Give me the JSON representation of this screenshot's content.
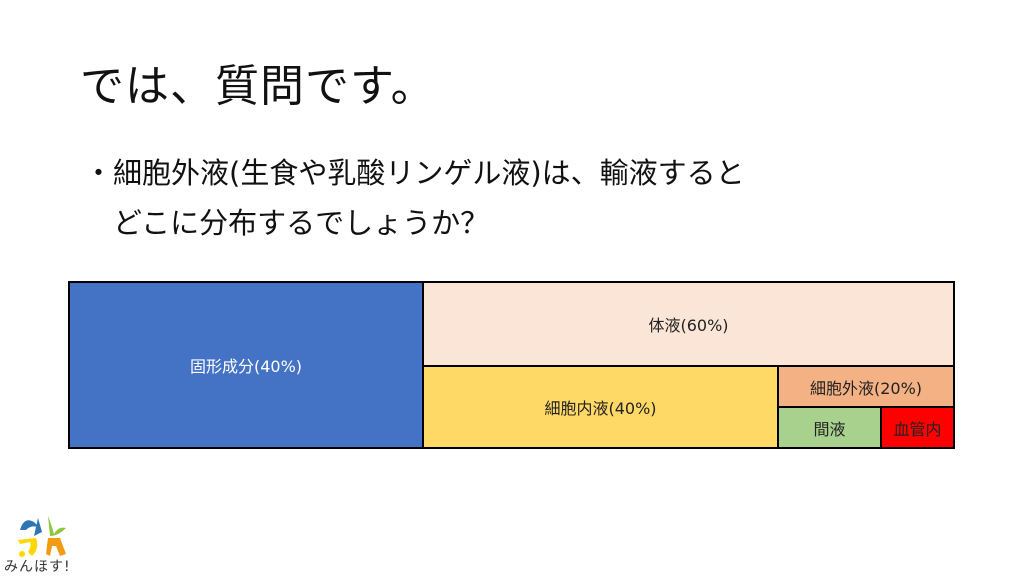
{
  "slide": {
    "title": "では、質問です。",
    "question_line1": "・細胞外液(生食や乳酸リンゲル液)は、輸液すると",
    "question_line2": "　どこに分布するでしょうか？"
  },
  "diagram": {
    "solid": {
      "label": "固形成分(40%)",
      "color": "#4472C4"
    },
    "body_fluid": {
      "label": "体液(60%)",
      "color": "#FBE5D6"
    },
    "intracellular": {
      "label": "細胞内液(40%)",
      "color": "#FFD966"
    },
    "extracellular": {
      "label": "細胞外液(20%)",
      "color": "#F4B183"
    },
    "interstitial": {
      "label": "間液",
      "color": "#A9D18E"
    },
    "intravascular": {
      "label": "血管内",
      "color": "#FF0000"
    }
  },
  "logo": {
    "text": "みんほす!"
  }
}
